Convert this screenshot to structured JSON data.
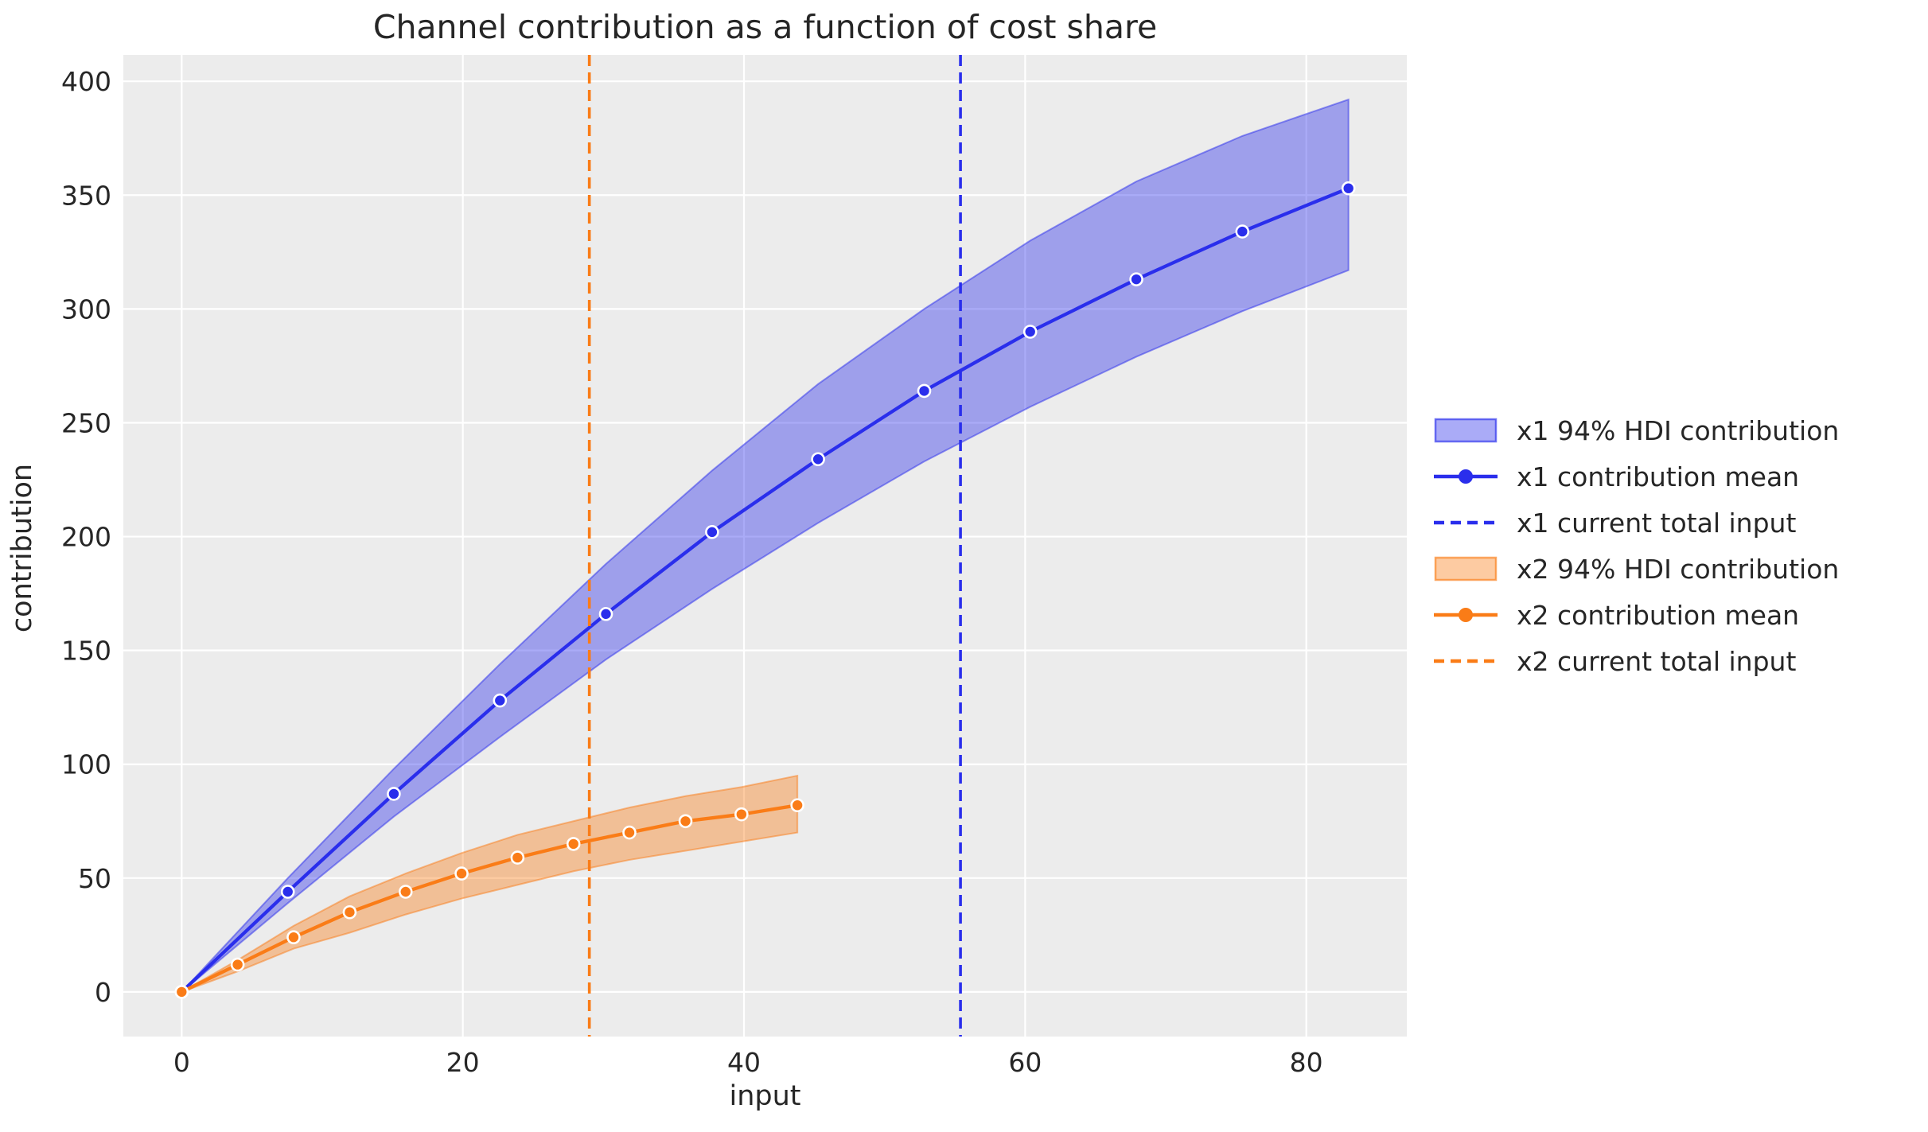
{
  "chart_data": {
    "type": "line",
    "title": "Channel contribution as a function of cost share",
    "xlabel": "input",
    "ylabel": "contribution",
    "xlim": [
      -4.15,
      87.15
    ],
    "ylim": [
      -19.6,
      411.6
    ],
    "xticks": [
      0,
      20,
      40,
      60,
      80
    ],
    "yticks": [
      0,
      50,
      100,
      150,
      200,
      250,
      300,
      350,
      400
    ],
    "grid": true,
    "legend_position": "right-outside",
    "series": [
      {
        "name": "x1 contribution mean",
        "color": "#2a2eec",
        "x": [
          0,
          7.55,
          15.09,
          22.64,
          30.18,
          37.73,
          45.27,
          52.82,
          60.36,
          67.91,
          75.45,
          83
        ],
        "y": [
          0,
          44,
          87,
          128,
          166,
          202,
          234,
          264,
          290,
          313,
          334,
          353
        ],
        "band_name": "x1 94% HDI contribution",
        "band_lo": [
          0,
          39,
          77,
          112,
          146,
          177,
          206,
          233,
          257,
          279,
          299,
          317
        ],
        "band_hi": [
          0,
          50,
          98,
          144,
          188,
          229,
          267,
          300,
          330,
          356,
          376,
          392
        ],
        "vline_name": "x1 current total input",
        "vline_x": 55.4
      },
      {
        "name": "x2 contribution mean",
        "color": "#fa7c17",
        "x": [
          0,
          3.98,
          7.96,
          11.95,
          15.93,
          19.91,
          23.89,
          27.87,
          31.85,
          35.84,
          39.82,
          43.8
        ],
        "y": [
          0,
          12,
          24,
          35,
          44,
          52,
          59,
          65,
          70,
          75,
          78,
          82
        ],
        "band_name": "x2 94% HDI contribution",
        "band_lo": [
          0,
          9,
          19,
          26,
          34,
          41,
          47,
          53,
          58,
          62,
          66,
          70
        ],
        "band_hi": [
          0,
          14,
          29,
          42,
          52,
          61,
          69,
          75,
          81,
          86,
          90,
          95
        ],
        "vline_name": "x2 current total input",
        "vline_x": 29.0
      }
    ]
  },
  "legend": {
    "items": [
      {
        "label": "x1 94% HDI contribution",
        "type": "patch",
        "color": "#2a2eec"
      },
      {
        "label": "x1 contribution mean",
        "type": "line-dot",
        "color": "#2a2eec"
      },
      {
        "label": "x1 current total input",
        "type": "dashed",
        "color": "#2a2eec"
      },
      {
        "label": "x2 94% HDI contribution",
        "type": "patch",
        "color": "#fa7c17"
      },
      {
        "label": "x2 contribution mean",
        "type": "line-dot",
        "color": "#fa7c17"
      },
      {
        "label": "x2 current total input",
        "type": "dashed",
        "color": "#fa7c17"
      }
    ]
  },
  "colors": {
    "x1_accent": "#2a2eec",
    "x2_accent": "#fa7c17",
    "plot_background": "#ececec",
    "grid": "#ffffff",
    "text": "#262626",
    "figure_background": "#ffffff"
  }
}
